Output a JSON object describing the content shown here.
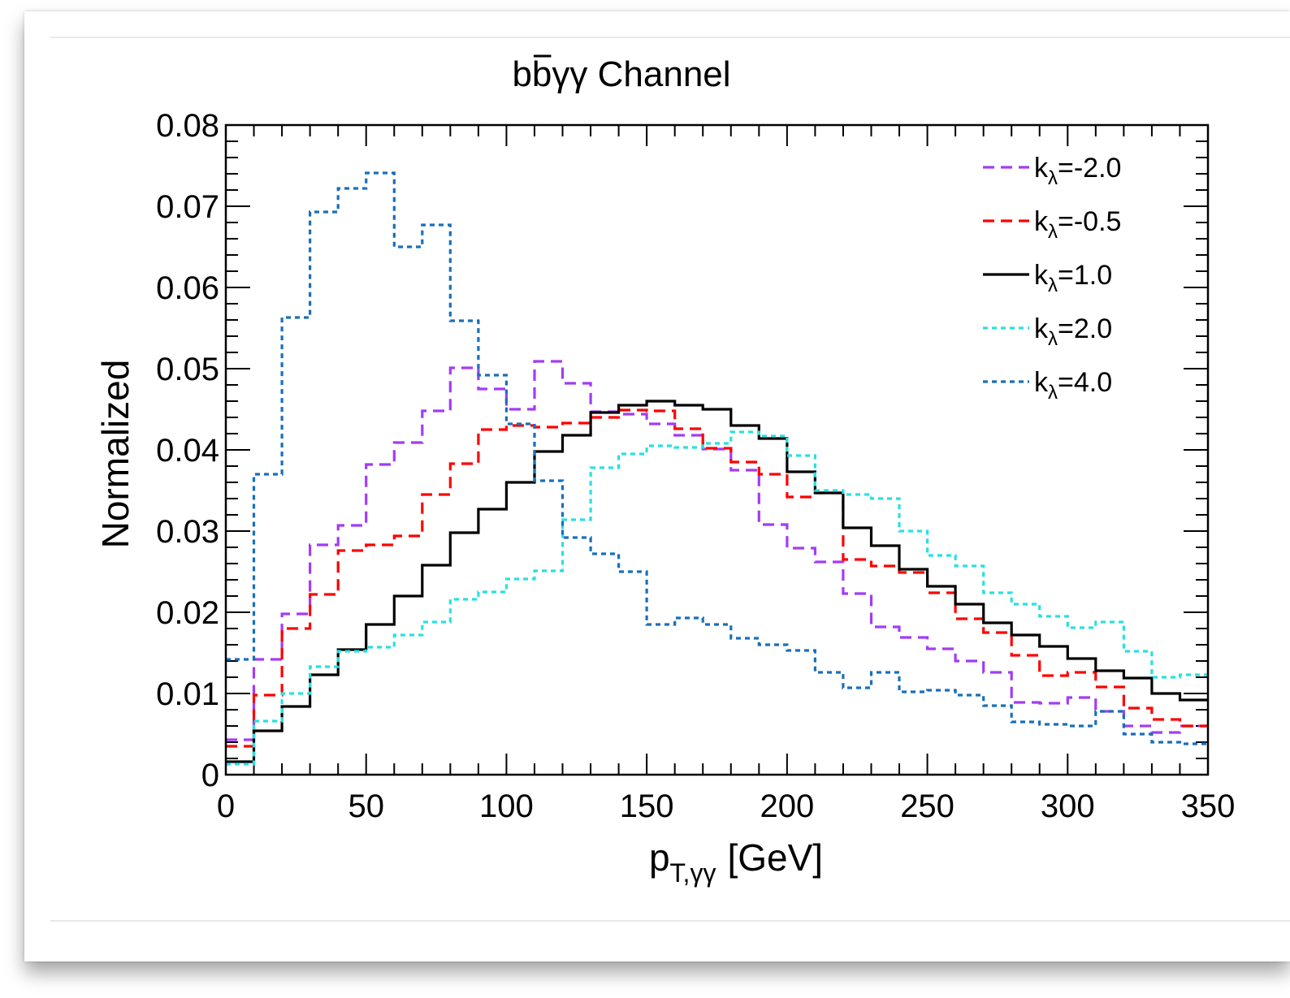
{
  "chart_data": {
    "type": "line",
    "drawstyle": "step-histogram",
    "title_parts": [
      "b",
      "b",
      "γγ Channel"
    ],
    "xlabel": {
      "main": "p",
      "sub": "T,γγ",
      "unit": "[GeV]"
    },
    "ylabel": "Normalized",
    "xlim": [
      0,
      350
    ],
    "ylim": [
      0,
      0.08
    ],
    "xticks": [
      0,
      50,
      100,
      150,
      200,
      250,
      300,
      350
    ],
    "xtick_labels": [
      "0",
      "50",
      "100",
      "150",
      "200",
      "250",
      "300",
      "350"
    ],
    "yticks": [
      0,
      0.01,
      0.02,
      0.03,
      0.04,
      0.05,
      0.06,
      0.07,
      0.08
    ],
    "ytick_labels": [
      "0",
      "0.01",
      "0.02",
      "0.03",
      "0.04",
      "0.05",
      "0.06",
      "0.07",
      "0.08"
    ],
    "bin_edges": [
      0,
      10,
      20,
      30,
      40,
      50,
      60,
      70,
      80,
      90,
      100,
      110,
      120,
      130,
      140,
      150,
      160,
      170,
      180,
      190,
      200,
      210,
      220,
      230,
      240,
      250,
      260,
      270,
      280,
      290,
      300,
      310,
      320,
      330,
      340,
      350
    ],
    "legend_position": "top-right",
    "grid": false,
    "series": [
      {
        "name_main": "k",
        "name_sub": "λ",
        "name_rest": "=-2.0",
        "color": "#a23cf5",
        "dash": "dashed",
        "values": [
          0.0043,
          0.0142,
          0.0198,
          0.0283,
          0.0307,
          0.0382,
          0.0409,
          0.0448,
          0.0501,
          0.0475,
          0.045,
          0.0509,
          0.0482,
          0.0447,
          0.0444,
          0.0432,
          0.0418,
          0.0401,
          0.0375,
          0.0308,
          0.0279,
          0.0262,
          0.0223,
          0.0182,
          0.0169,
          0.0155,
          0.014,
          0.0126,
          0.0089,
          0.0088,
          0.0095,
          0.0078,
          0.006,
          0.0052,
          0.006
        ]
      },
      {
        "name_main": "k",
        "name_sub": "λ",
        "name_rest": "=-0.5",
        "color": "#ff0000",
        "dash": "dashed",
        "values": [
          0.0035,
          0.0098,
          0.018,
          0.0222,
          0.0276,
          0.0283,
          0.0294,
          0.0345,
          0.0383,
          0.0425,
          0.043,
          0.0428,
          0.0433,
          0.044,
          0.0449,
          0.0448,
          0.0426,
          0.0402,
          0.0385,
          0.037,
          0.0342,
          0.0347,
          0.0265,
          0.0257,
          0.0249,
          0.0224,
          0.0192,
          0.0175,
          0.0147,
          0.0122,
          0.0126,
          0.0108,
          0.0082,
          0.0068,
          0.006
        ]
      },
      {
        "name_main": "k",
        "name_sub": "λ",
        "name_rest": "=1.0",
        "color": "#000000",
        "dash": "solid",
        "values": [
          0.0016,
          0.0054,
          0.0084,
          0.0123,
          0.0154,
          0.0185,
          0.022,
          0.0258,
          0.0298,
          0.0327,
          0.036,
          0.0398,
          0.0418,
          0.0446,
          0.0455,
          0.046,
          0.0455,
          0.045,
          0.043,
          0.0414,
          0.0373,
          0.0347,
          0.0304,
          0.0282,
          0.0253,
          0.0232,
          0.021,
          0.0187,
          0.0172,
          0.0158,
          0.0143,
          0.0128,
          0.0119,
          0.01,
          0.0092
        ]
      },
      {
        "name_main": "k",
        "name_sub": "λ",
        "name_rest": "=2.0",
        "color": "#29e0e0",
        "dash": "dotted",
        "values": [
          0.0013,
          0.0066,
          0.01,
          0.0133,
          0.0152,
          0.0157,
          0.0172,
          0.0188,
          0.0216,
          0.0225,
          0.0241,
          0.0251,
          0.0314,
          0.0378,
          0.0395,
          0.0405,
          0.0403,
          0.0408,
          0.0422,
          0.0417,
          0.0393,
          0.035,
          0.0345,
          0.034,
          0.03,
          0.027,
          0.0257,
          0.0224,
          0.021,
          0.0195,
          0.0181,
          0.0188,
          0.0152,
          0.012,
          0.0123
        ]
      },
      {
        "name_main": "k",
        "name_sub": "λ",
        "name_rest": "=4.0",
        "color": "#1a6fba",
        "dash": "dotted",
        "values": [
          0.0142,
          0.037,
          0.0563,
          0.0693,
          0.0722,
          0.0741,
          0.065,
          0.0677,
          0.0559,
          0.0492,
          0.0432,
          0.0362,
          0.0292,
          0.0272,
          0.025,
          0.0185,
          0.0193,
          0.0185,
          0.0168,
          0.016,
          0.0153,
          0.0126,
          0.0107,
          0.0126,
          0.0102,
          0.0104,
          0.0098,
          0.0085,
          0.0065,
          0.0062,
          0.006,
          0.0078,
          0.005,
          0.004,
          0.0038
        ]
      }
    ]
  }
}
